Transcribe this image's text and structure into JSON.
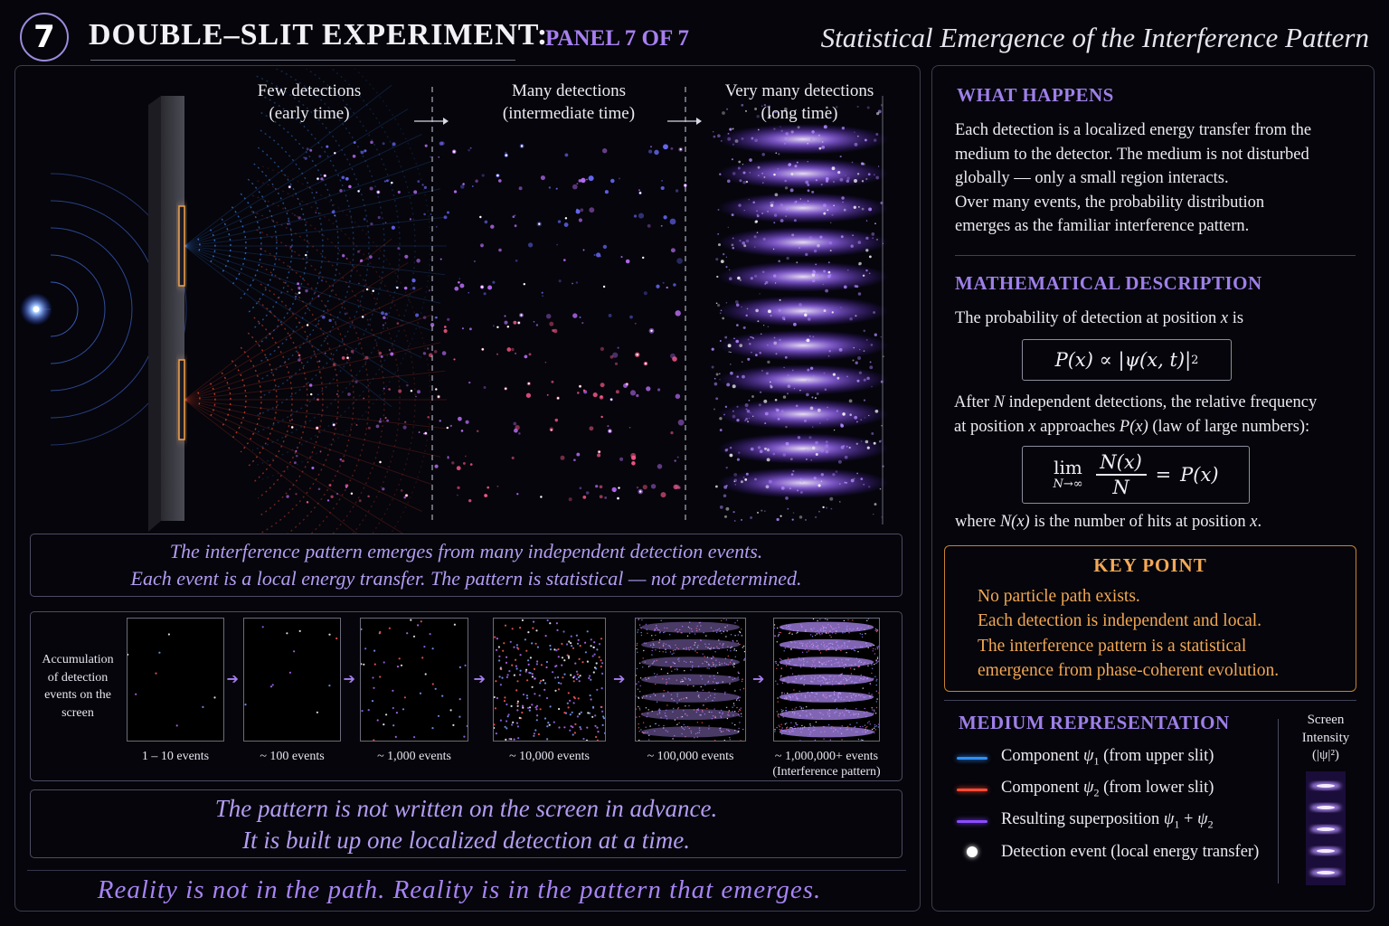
{
  "header": {
    "number": "7",
    "title": "DOUBLE–SLIT EXPERIMENT:",
    "panel_label": "PANEL 7 OF 7",
    "subtitle": "Statistical Emergence of the Interference Pattern"
  },
  "stages": [
    {
      "line1": "Few detections",
      "line2": "(early time)"
    },
    {
      "line1": "Many detections",
      "line2": "(intermediate time)"
    },
    {
      "line1": "Very many detections",
      "line2": "(long time)"
    }
  ],
  "caption": {
    "line1": "The interference pattern emerges from many independent detection events.",
    "line2": "Each event is a local energy transfer. The pattern is statistical — not predetermined."
  },
  "accumulation": {
    "label": "Accumulation of detection events on the screen",
    "steps": [
      {
        "caption": "1 – 10 events",
        "caption2": "",
        "level": 0.01
      },
      {
        "caption": "~ 100 events",
        "caption2": "",
        "level": 0.05
      },
      {
        "caption": "~ 1,000 events",
        "caption2": "",
        "level": 0.2
      },
      {
        "caption": "~ 10,000 events",
        "caption2": "",
        "level": 0.5
      },
      {
        "caption": "~ 100,000 events",
        "caption2": "",
        "level": 0.8
      },
      {
        "caption": "~ 1,000,000+ events",
        "caption2": "(Interference pattern)",
        "level": 1.0
      }
    ]
  },
  "message": {
    "line1": "The pattern is not written on the screen in advance.",
    "line2": "It is built up one localized detection at a time."
  },
  "bottom_line": "Reality is not in the path. Reality is in the pattern that emerges.",
  "what_happens": {
    "heading": "WHAT HAPPENS",
    "lines": [
      "Each detection is a localized energy transfer from the",
      "medium to the detector. The medium is not disturbed",
      "globally — only a small region interacts.",
      "Over many events, the probability distribution",
      "emerges as the familiar interference pattern."
    ]
  },
  "math": {
    "heading": "MATHEMATICAL DESCRIPTION",
    "intro_pre": "The probability of detection at position ",
    "intro_var": "x",
    "intro_post": " is",
    "formula1_lhs": "P(x)",
    "formula1_prop": "∝",
    "formula1_rhs": "|ψ(x, t)|",
    "formula1_exp": "2",
    "after_pre": "After ",
    "after_var": "N",
    "after_post": " independent detections, the relative frequency",
    "at_pre": "at position ",
    "at_var": "x",
    "at_mid": " approaches ",
    "at_func": "P(x)",
    "at_post": " (law of large numbers):",
    "lim_word": "lim",
    "lim_sub": "N→∞",
    "frac_num": "N(x)",
    "frac_den": "N",
    "equals": "=",
    "lim_rhs": "P(x)",
    "where_pre": "where ",
    "where_var": "N(x)",
    "where_mid": " is the number of hits at position ",
    "where_var2": "x",
    "where_end": "."
  },
  "key_point": {
    "heading": "KEY POINT",
    "lines": [
      "No particle path exists.",
      "Each detection is independent and local.",
      "The interference pattern is a statistical",
      "emergence from phase-coherent evolution."
    ]
  },
  "medium": {
    "heading": "MEDIUM REPRESENTATION",
    "items": [
      {
        "color": "#2f8fff",
        "pre": "Component ",
        "sym": "ψ",
        "sub": "1",
        "post": "  (from upper slit)"
      },
      {
        "color": "#ff4a36",
        "pre": "Component ",
        "sym": "ψ",
        "sub": "2",
        "post": "  (from lower slit)"
      },
      {
        "color": "#8a4dff",
        "pre": "Resulting superposition ",
        "sym": "ψ",
        "sub": "1",
        "plus": " + ",
        "sym2": "ψ",
        "sub2": "2",
        "post": ""
      },
      {
        "color": "#ffffff",
        "pre": "Detection event (local energy transfer)",
        "sym": "",
        "sub": "",
        "post": ""
      }
    ],
    "screen_line1": "Screen",
    "screen_line2": "Intensity",
    "screen_line3": "(|ψ|²)"
  }
}
